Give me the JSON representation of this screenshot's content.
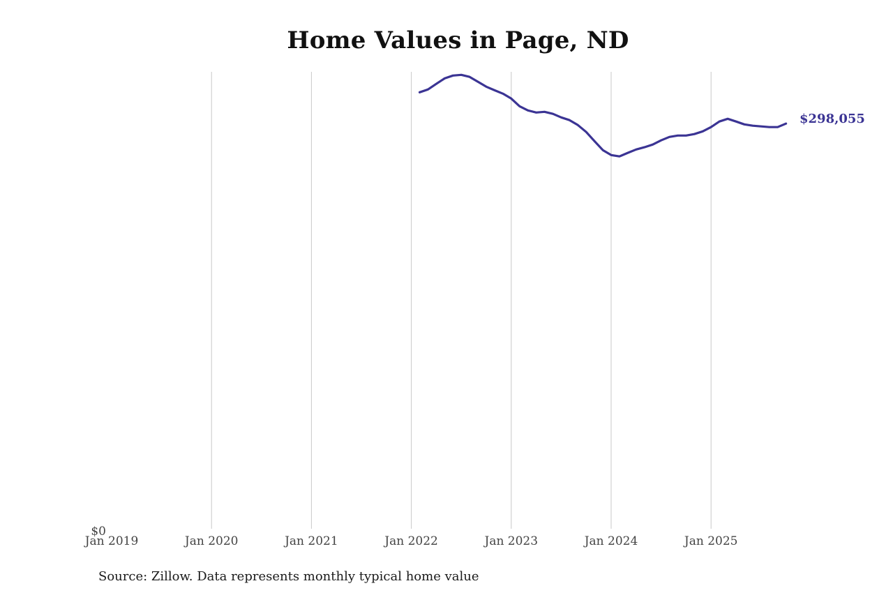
{
  "title": "Home Values in Page, ND",
  "source_note": "Source: Zillow. Data represents monthly typical home value",
  "end_label": "$298,055",
  "colors": {
    "line": "#3b3494",
    "gridline": "#c8c8c8",
    "tick_label": "#444444",
    "title": "#111111"
  },
  "chart_data": {
    "type": "line",
    "title": "Home Values in Page, ND",
    "xlabel": "",
    "ylabel": "",
    "x_ticks": [
      "Jan 2019",
      "Jan 2020",
      "Jan 2021",
      "Jan 2022",
      "Jan 2023",
      "Jan 2024",
      "Jan 2025"
    ],
    "y_ticks": [
      "$0"
    ],
    "ylim": [
      0,
      336000
    ],
    "grid": "vertical",
    "legend": "none",
    "annotations": [
      {
        "text": "$298,055",
        "x": "Oct 2025",
        "y": 298055
      }
    ],
    "series": [
      {
        "name": "Typical home value",
        "x": [
          "Feb 2022",
          "Mar 2022",
          "Apr 2022",
          "May 2022",
          "Jun 2022",
          "Jul 2022",
          "Aug 2022",
          "Sep 2022",
          "Oct 2022",
          "Nov 2022",
          "Dec 2022",
          "Jan 2023",
          "Feb 2023",
          "Mar 2023",
          "Apr 2023",
          "May 2023",
          "Jun 2023",
          "Jul 2023",
          "Aug 2023",
          "Sep 2023",
          "Oct 2023",
          "Nov 2023",
          "Dec 2023",
          "Jan 2024",
          "Feb 2024",
          "Mar 2024",
          "Apr 2024",
          "May 2024",
          "Jun 2024",
          "Jul 2024",
          "Aug 2024",
          "Sep 2024",
          "Oct 2024",
          "Nov 2024",
          "Dec 2024",
          "Jan 2025",
          "Feb 2025",
          "Mar 2025",
          "Apr 2025",
          "May 2025",
          "Jun 2025",
          "Jul 2025",
          "Aug 2025",
          "Sep 2025",
          "Oct 2025"
        ],
        "values": [
          321000,
          323100,
          327200,
          331200,
          333300,
          333800,
          332300,
          328700,
          325100,
          322500,
          320000,
          316400,
          310800,
          307700,
          306200,
          306700,
          305200,
          302600,
          300600,
          297000,
          291900,
          285200,
          278600,
          275000,
          274000,
          276600,
          279100,
          280700,
          282700,
          285800,
          288300,
          289300,
          289300,
          290400,
          292400,
          295500,
          299600,
          301600,
          299600,
          297500,
          296500,
          296000,
          295500,
          295500,
          298055
        ]
      }
    ]
  }
}
